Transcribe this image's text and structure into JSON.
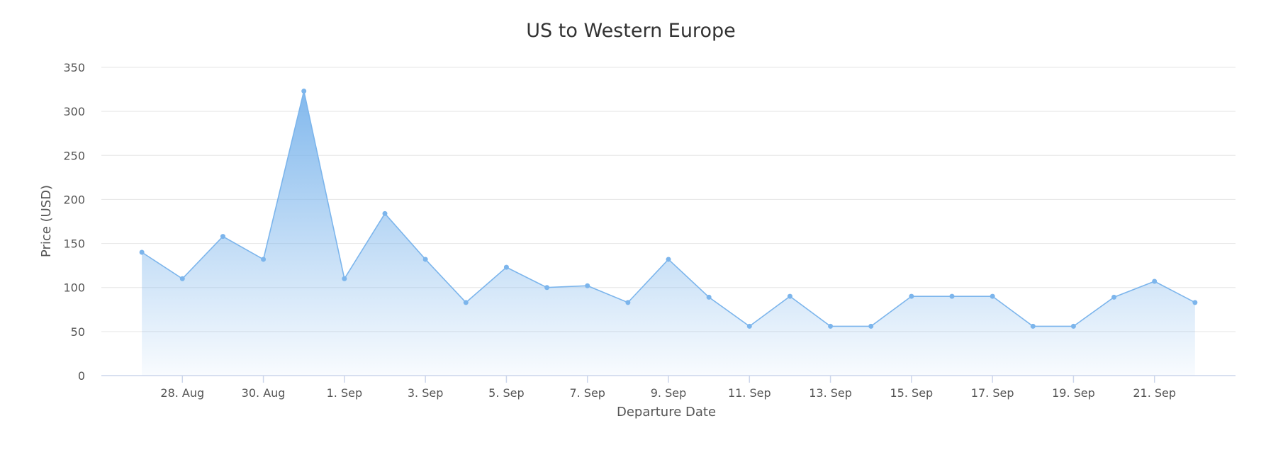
{
  "chart_data": {
    "type": "area",
    "title": "US to Western Europe",
    "xlabel": "Departure Date",
    "ylabel": "Price (USD)",
    "ylim": [
      0,
      350
    ],
    "yticks": [
      0,
      50,
      100,
      150,
      200,
      250,
      300,
      350
    ],
    "xlim": [
      "2024-08-26",
      "2024-09-23"
    ],
    "x_tick_dates": [
      "2024-08-28",
      "2024-08-30",
      "2024-09-01",
      "2024-09-03",
      "2024-09-05",
      "2024-09-07",
      "2024-09-09",
      "2024-09-11",
      "2024-09-13",
      "2024-09-15",
      "2024-09-17",
      "2024-09-19",
      "2024-09-21"
    ],
    "x_tick_labels": [
      "28. Aug",
      "30. Aug",
      "1. Sep",
      "3. Sep",
      "5. Sep",
      "7. Sep",
      "9. Sep",
      "11. Sep",
      "13. Sep",
      "15. Sep",
      "17. Sep",
      "19. Sep",
      "21. Sep"
    ],
    "grid": true,
    "legend": "none",
    "color": "#7cb5ec",
    "x": [
      "2024-08-27",
      "2024-08-28",
      "2024-08-29",
      "2024-08-30",
      "2024-08-31",
      "2024-09-01",
      "2024-09-02",
      "2024-09-03",
      "2024-09-04",
      "2024-09-05",
      "2024-09-06",
      "2024-09-07",
      "2024-09-08",
      "2024-09-09",
      "2024-09-10",
      "2024-09-11",
      "2024-09-12",
      "2024-09-13",
      "2024-09-14",
      "2024-09-15",
      "2024-09-16",
      "2024-09-17",
      "2024-09-18",
      "2024-09-19",
      "2024-09-20",
      "2024-09-21",
      "2024-09-22"
    ],
    "series": [
      {
        "values": [
          140,
          110,
          158,
          132,
          323,
          110,
          184,
          132,
          83,
          123,
          100,
          102,
          83,
          132,
          89,
          56,
          90,
          56,
          56,
          90,
          90,
          90,
          56,
          56,
          89,
          107,
          83
        ]
      }
    ]
  }
}
